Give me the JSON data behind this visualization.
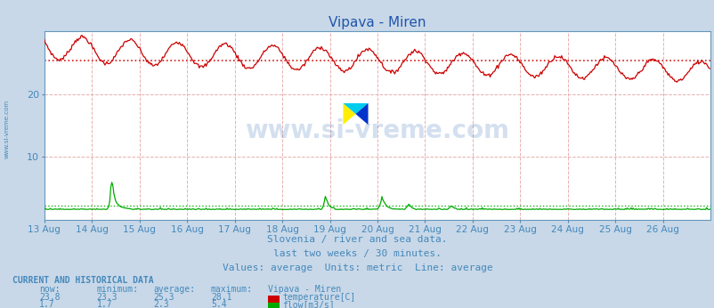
{
  "title": "Vipava - Miren",
  "bg_color": "#c8d8e8",
  "plot_bg_color": "#ffffff",
  "grid_color": "#e8b0b0",
  "x_labels": [
    "13 Aug",
    "14 Aug",
    "15 Aug",
    "16 Aug",
    "17 Aug",
    "18 Aug",
    "19 Aug",
    "20 Aug",
    "21 Aug",
    "22 Aug",
    "23 Aug",
    "24 Aug",
    "25 Aug",
    "26 Aug"
  ],
  "ylim": [
    0,
    30
  ],
  "yticks": [
    10,
    20
  ],
  "temp_avg": 25.3,
  "flow_avg": 2.3,
  "temp_color": "#cc0000",
  "flow_color": "#00aa00",
  "subtitle1": "Slovenia / river and sea data.",
  "subtitle2": "last two weeks / 30 minutes.",
  "subtitle3": "Values: average  Units: metric  Line: average",
  "subtitle_color": "#4488bb",
  "watermark": "www.si-vreme.com",
  "watermark_color": "#1155aa",
  "left_label": "www.si-vreme.com",
  "table_row1": [
    "23.8",
    "23.3",
    "25.3",
    "28.1"
  ],
  "table_row2": [
    "1.7",
    "1.7",
    "2.3",
    "5.4"
  ],
  "table_label1": "temperature[C]",
  "table_label2": "flow[m3/s]",
  "table_title": "CURRENT AND HISTORICAL DATA",
  "table_header": [
    "now:",
    "minimum:",
    "average:",
    "maximum:",
    "Vipava - Miren"
  ],
  "n_points": 672,
  "border_color": "#6699bb",
  "title_color": "#2255aa",
  "tick_color": "#4488bb"
}
